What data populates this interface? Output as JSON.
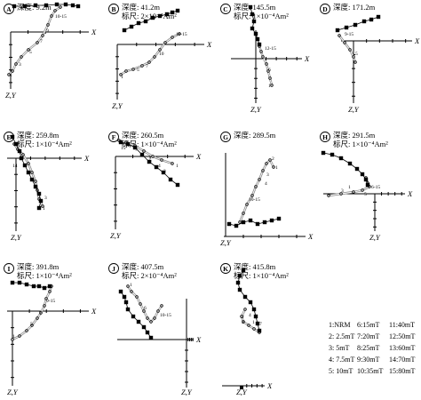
{
  "panels": [
    {
      "letter": "A",
      "depth": "深度: 9.2m",
      "scale": "",
      "hz": [
        [
          12,
          3
        ],
        [
          24,
          3
        ],
        [
          36,
          2
        ],
        [
          48,
          2
        ],
        [
          60,
          1
        ],
        [
          70,
          1
        ],
        [
          78,
          2
        ],
        [
          84,
          3
        ]
      ],
      "vt": [
        [
          6,
          80
        ],
        [
          10,
          76
        ],
        [
          14,
          68
        ],
        [
          20,
          60
        ],
        [
          28,
          52
        ],
        [
          38,
          44
        ],
        [
          44,
          36
        ],
        [
          50,
          24
        ],
        [
          54,
          14
        ],
        [
          58,
          8
        ],
        [
          64,
          4
        ]
      ],
      "steps": [
        [
          "1",
          5,
          82
        ],
        [
          "3",
          15,
          70
        ],
        [
          "5",
          27,
          56
        ],
        [
          "7",
          39,
          44
        ],
        [
          "9",
          46,
          32
        ],
        [
          "10-15",
          56,
          16
        ]
      ]
    },
    {
      "letter": "B",
      "depth": "深度: 41.2m",
      "scale": "标尺: 2×10⁻⁴Am²",
      "hz": [
        [
          18,
          30
        ],
        [
          26,
          26
        ],
        [
          34,
          22
        ],
        [
          42,
          20
        ],
        [
          50,
          16
        ],
        [
          58,
          14
        ],
        [
          66,
          12
        ],
        [
          72,
          10
        ],
        [
          78,
          8
        ]
      ],
      "vt": [
        [
          14,
          80
        ],
        [
          20,
          76
        ],
        [
          28,
          74
        ],
        [
          38,
          70
        ],
        [
          46,
          66
        ],
        [
          52,
          60
        ],
        [
          58,
          52
        ],
        [
          64,
          44
        ],
        [
          72,
          38
        ],
        [
          80,
          34
        ]
      ],
      "steps": [
        [
          "1",
          12,
          84
        ],
        [
          "5",
          30,
          76
        ],
        [
          "7",
          40,
          72
        ],
        [
          "10",
          55,
          58
        ],
        [
          "11-15",
          74,
          36
        ]
      ]
    },
    {
      "letter": "C",
      "depth": "深度: 145.5m",
      "scale": "标尺: 1×10⁻⁴Am²",
      "hz": [
        [
          34,
          4
        ],
        [
          36,
          12
        ],
        [
          38,
          20
        ],
        [
          36,
          28
        ],
        [
          40,
          34
        ],
        [
          42,
          40
        ],
        [
          44,
          46
        ]
      ],
      "vt": [
        [
          44,
          48
        ],
        [
          46,
          54
        ],
        [
          48,
          60
        ],
        [
          52,
          68
        ],
        [
          54,
          76
        ],
        [
          56,
          84
        ],
        [
          58,
          92
        ]
      ],
      "steps": [
        [
          "12-15",
          48,
          52
        ],
        [
          "6",
          52,
          76
        ],
        [
          "1",
          52,
          94
        ]
      ]
    },
    {
      "letter": "D",
      "depth": "深度: 171.2m",
      "scale": "",
      "hz": [
        [
          20,
          30
        ],
        [
          30,
          27
        ],
        [
          40,
          24
        ],
        [
          50,
          20
        ],
        [
          58,
          18
        ],
        [
          66,
          15
        ]
      ],
      "vt": [
        [
          22,
          36
        ],
        [
          28,
          44
        ],
        [
          34,
          52
        ],
        [
          38,
          60
        ],
        [
          40,
          66
        ]
      ],
      "steps": [
        [
          "9-15",
          26,
          36
        ],
        [
          "5",
          38,
          58
        ]
      ]
    },
    {
      "letter": "E",
      "depth": "深度: 259.8m",
      "scale": "标尺: 1×10⁻⁴Am²",
      "hz": [
        [
          10,
          6
        ],
        [
          14,
          14
        ],
        [
          18,
          22
        ],
        [
          20,
          30
        ],
        [
          24,
          38
        ],
        [
          28,
          46
        ],
        [
          32,
          54
        ],
        [
          36,
          62
        ],
        [
          40,
          70
        ],
        [
          42,
          78
        ],
        [
          40,
          86
        ]
      ],
      "vt": [
        [
          12,
          14
        ],
        [
          16,
          20
        ],
        [
          22,
          26
        ],
        [
          28,
          36
        ],
        [
          32,
          46
        ],
        [
          36,
          56
        ],
        [
          38,
          66
        ],
        [
          40,
          76
        ],
        [
          44,
          84
        ]
      ],
      "steps": [
        [
          "15",
          16,
          10
        ],
        [
          "14",
          8,
          40
        ],
        [
          "3",
          44,
          76
        ],
        [
          "1",
          42,
          88
        ]
      ]
    },
    {
      "letter": "F",
      "depth": "深度: 260.5m",
      "scale": "标尺: 1×10⁻⁴Am²",
      "hz": [
        [
          14,
          12
        ],
        [
          22,
          14
        ],
        [
          30,
          18
        ],
        [
          38,
          26
        ],
        [
          46,
          34
        ],
        [
          54,
          40
        ],
        [
          62,
          46
        ],
        [
          70,
          54
        ],
        [
          78,
          60
        ]
      ],
      "vt": [
        [
          12,
          10
        ],
        [
          20,
          12
        ],
        [
          30,
          16
        ],
        [
          40,
          22
        ],
        [
          50,
          28
        ],
        [
          60,
          32
        ],
        [
          72,
          36
        ]
      ],
      "steps": [
        [
          "15",
          12,
          20
        ],
        [
          "7",
          28,
          22
        ],
        [
          "5",
          44,
          34
        ],
        [
          "4",
          54,
          40
        ],
        [
          "3",
          60,
          46
        ],
        [
          "1",
          74,
          40
        ]
      ]
    },
    {
      "letter": "G",
      "depth": "深度: 289.5m",
      "scale": "",
      "hz": [
        [
          10,
          84
        ],
        [
          18,
          86
        ],
        [
          26,
          82
        ],
        [
          34,
          80
        ],
        [
          42,
          84
        ],
        [
          50,
          82
        ],
        [
          58,
          80
        ],
        [
          66,
          78
        ]
      ],
      "vt": [
        [
          22,
          82
        ],
        [
          26,
          72
        ],
        [
          30,
          62
        ],
        [
          36,
          52
        ],
        [
          40,
          42
        ],
        [
          44,
          34
        ],
        [
          48,
          24
        ],
        [
          52,
          16
        ],
        [
          56,
          12
        ],
        [
          60,
          20
        ]
      ],
      "steps": [
        [
          "1",
          60,
          22
        ],
        [
          "2",
          56,
          12
        ],
        [
          "3",
          50,
          30
        ],
        [
          "4",
          48,
          40
        ],
        [
          "10-15",
          30,
          58
        ]
      ]
    },
    {
      "letter": "H",
      "depth": "深度: 291.5m",
      "scale": "标尺: 1×10⁻⁴Am²",
      "hz": [
        [
          4,
          24
        ],
        [
          14,
          26
        ],
        [
          24,
          30
        ],
        [
          34,
          36
        ],
        [
          42,
          42
        ],
        [
          48,
          48
        ],
        [
          52,
          54
        ],
        [
          54,
          60
        ]
      ],
      "vt": [
        [
          52,
          52
        ],
        [
          54,
          58
        ],
        [
          56,
          62
        ],
        [
          48,
          66
        ],
        [
          38,
          68
        ],
        [
          24,
          70
        ],
        [
          10,
          72
        ]
      ],
      "steps": [
        [
          "1",
          30,
          64
        ],
        [
          "3",
          22,
          68
        ],
        [
          "5",
          48,
          72
        ],
        [
          "6-15",
          56,
          64
        ]
      ]
    },
    {
      "letter": "I",
      "depth": "深度: 391.8m",
      "scale": "标尺: 1×10⁻⁴Am²",
      "hz": [
        [
          10,
          22
        ],
        [
          18,
          22
        ],
        [
          26,
          24
        ],
        [
          34,
          26
        ],
        [
          40,
          26
        ],
        [
          46,
          28
        ],
        [
          52,
          26
        ]
      ],
      "vt": [
        [
          10,
          86
        ],
        [
          18,
          82
        ],
        [
          26,
          76
        ],
        [
          32,
          70
        ],
        [
          38,
          62
        ],
        [
          42,
          56
        ],
        [
          46,
          48
        ],
        [
          48,
          40
        ],
        [
          52,
          32
        ],
        [
          54,
          26
        ]
      ],
      "steps": [
        [
          "1",
          8,
          84
        ],
        [
          "5",
          28,
          70
        ],
        [
          "7",
          38,
          58
        ],
        [
          "9-15",
          46,
          44
        ]
      ]
    },
    {
      "letter": "J",
      "depth": "深度: 407.5m",
      "scale": "标尺: 2×10⁻⁴Am²",
      "hz": [
        [
          14,
          32
        ],
        [
          18,
          38
        ],
        [
          20,
          44
        ],
        [
          22,
          52
        ],
        [
          28,
          60
        ],
        [
          34,
          66
        ],
        [
          40,
          72
        ],
        [
          44,
          78
        ],
        [
          48,
          84
        ]
      ],
      "vt": [
        [
          22,
          26
        ],
        [
          26,
          32
        ],
        [
          32,
          38
        ],
        [
          36,
          46
        ],
        [
          40,
          54
        ],
        [
          44,
          62
        ],
        [
          48,
          66
        ],
        [
          52,
          62
        ],
        [
          56,
          54
        ],
        [
          60,
          48
        ]
      ],
      "steps": [
        [
          "1",
          22,
          26
        ],
        [
          "6",
          38,
          52
        ],
        [
          "10-15",
          56,
          60
        ]
      ]
    },
    {
      "letter": "K",
      "depth": "深度: 415.8m",
      "scale": "标尺: 1×10⁻⁴Am²",
      "hz": [
        [
          26,
          8
        ],
        [
          22,
          14
        ],
        [
          20,
          22
        ],
        [
          22,
          30
        ],
        [
          28,
          38
        ],
        [
          34,
          44
        ],
        [
          38,
          52
        ],
        [
          40,
          60
        ],
        [
          42,
          68
        ],
        [
          44,
          76
        ]
      ],
      "vt": [
        [
          28,
          52
        ],
        [
          24,
          60
        ],
        [
          26,
          66
        ],
        [
          32,
          70
        ],
        [
          38,
          74
        ],
        [
          44,
          78
        ]
      ],
      "steps": [
        [
          "1",
          34,
          68
        ],
        [
          "2",
          22,
          62
        ],
        [
          "3",
          22,
          68
        ],
        [
          "4",
          30,
          60
        ],
        [
          "7",
          42,
          70
        ]
      ]
    }
  ],
  "axis_labels": {
    "x": "X",
    "zy": "Z,Y"
  },
  "legend": [
    [
      "1:NRM",
      "6:15mT",
      "11:40mT"
    ],
    [
      "2: 2.5mT",
      "7:20mT",
      "12:50mT"
    ],
    [
      "3: 5mT",
      "8:25mT",
      "13:60mT"
    ],
    [
      "4: 7.5mT",
      "9:30mT",
      "14:70mT"
    ],
    [
      "5: 10mT",
      "10:35mT",
      "15:80mT"
    ]
  ]
}
